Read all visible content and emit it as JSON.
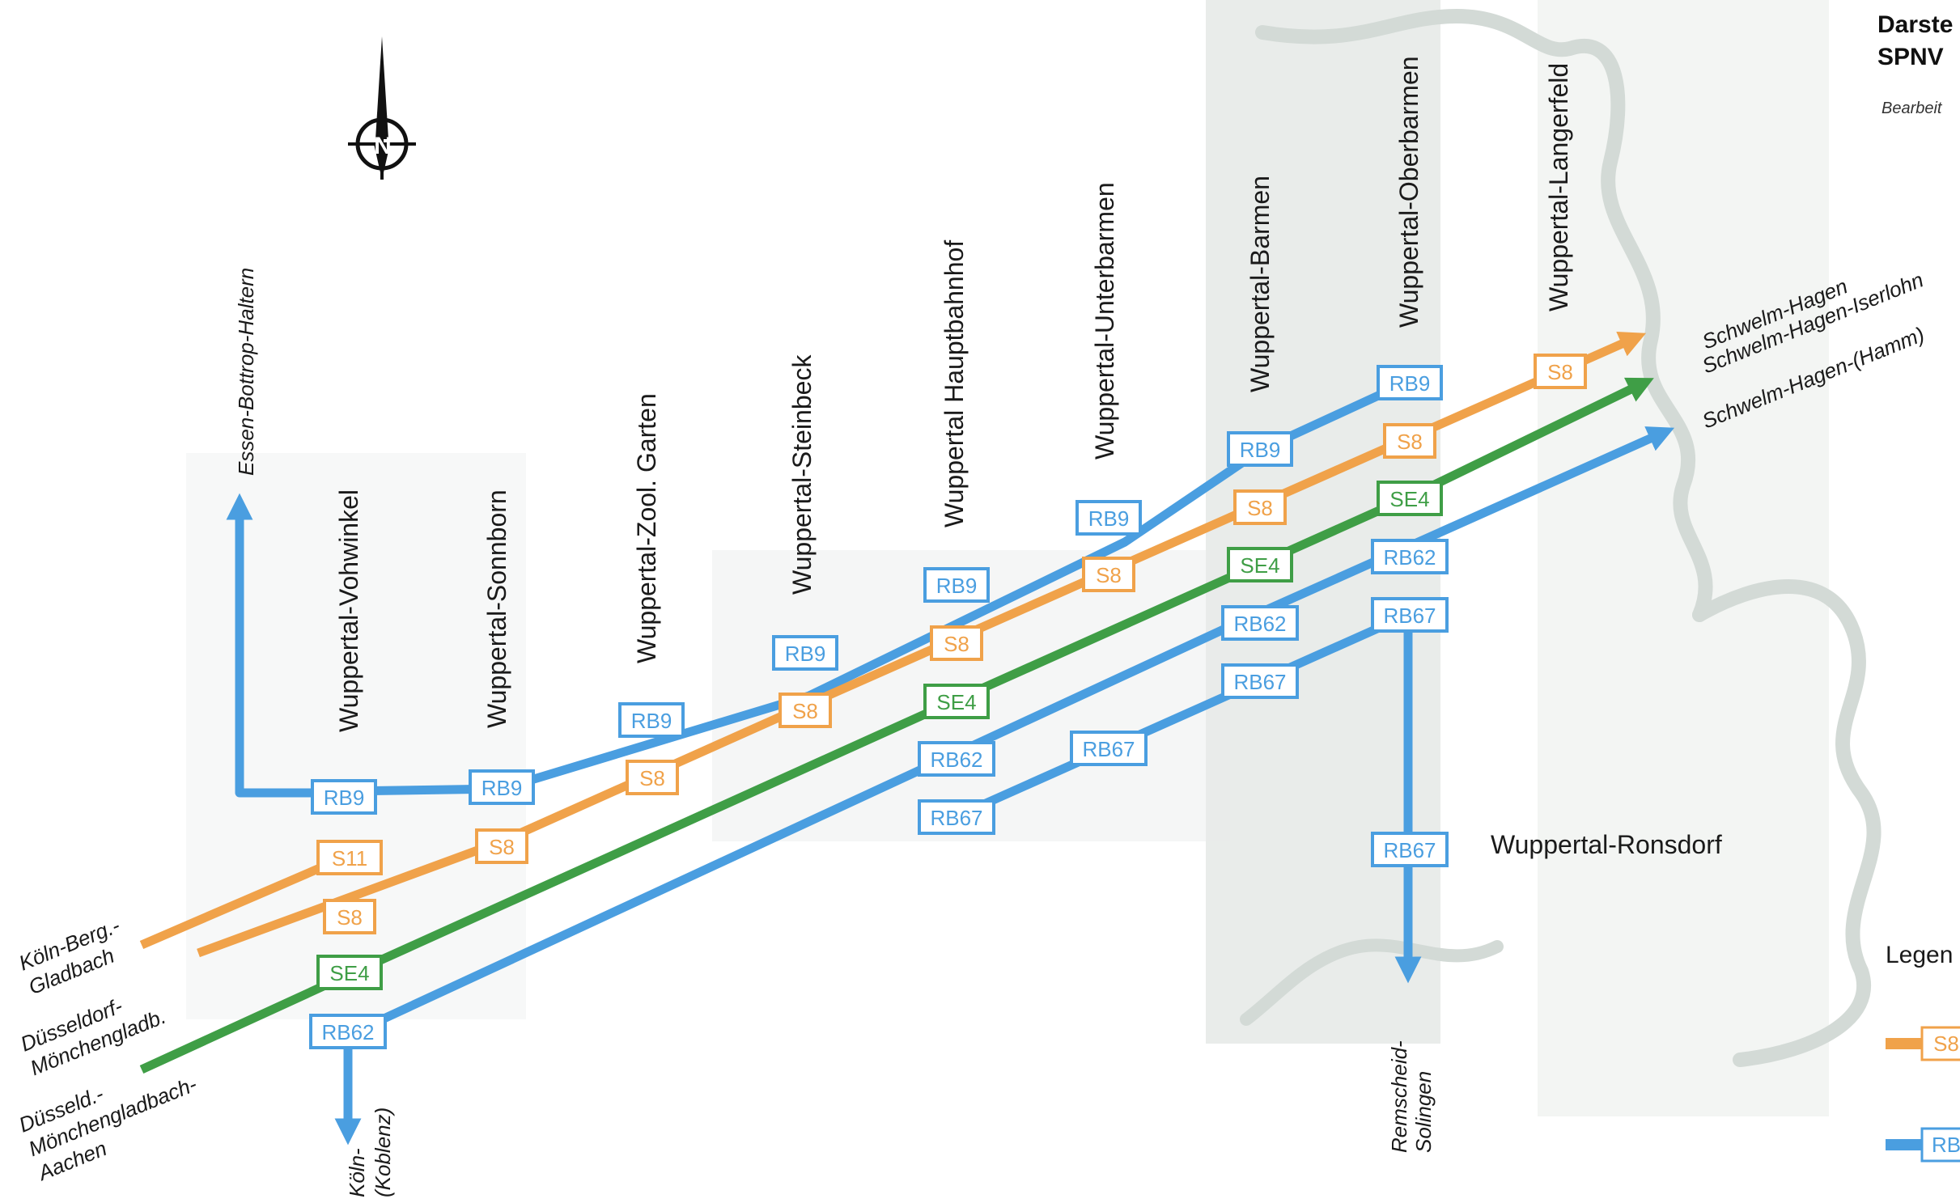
{
  "colors": {
    "rb": "#4a9ee0",
    "s": "#f0a24a",
    "se": "#3f9e46",
    "shade": "#e9ecea",
    "river": "#d3dad6"
  },
  "header": {
    "title_1": "Darste",
    "title_2": "SPNV",
    "subtitle": "Bearbeit"
  },
  "compass": {
    "letter": "N",
    "icon": "north-arrow-icon"
  },
  "stations": {
    "vohwinkel": "Wuppertal-Vohwinkel",
    "sonnborn": "Wuppertal-Sonnborn",
    "zoo": "Wuppertal-Zool. Garten",
    "steinbeck": "Wuppertal-Steinbeck",
    "hbf": "Wuppertal Hauptbahnhof",
    "unterbarmen": "Wuppertal-Unterbarmen",
    "barmen": "Wuppertal-Barmen",
    "oberbarmen": "Wuppertal-Oberbarmen",
    "langerfeld": "Wuppertal-Langerfeld",
    "ronsdorf": "Wuppertal-Ronsdorf"
  },
  "destinations": {
    "essen": "Essen-Bottrop-Haltern",
    "koeln_berg_1": "Köln-Berg.-",
    "koeln_berg_2": "Gladbach",
    "duess_mg_1": "Düsseldorf-",
    "duess_mg_2": "Mönchengladb.",
    "duess_aachen_1": "Düsseld.-",
    "duess_aachen_2": "Mönchengladbach-",
    "duess_aachen_3": "Aachen",
    "koeln_koblenz_1": "Köln-",
    "koeln_koblenz_2": "(Koblenz)",
    "remscheid_1": "Remscheid-",
    "remscheid_2": "Solingen",
    "schwelm_hagen": "Schwelm-Hagen",
    "schwelm_iserlohn": "Schwelm-Hagen-Iserlohn",
    "schwelm_hamm": "Schwelm-Hagen-(Hamm)"
  },
  "line_labels": {
    "rb9": "RB9",
    "s8": "S8",
    "s11": "S11",
    "se4": "SE4",
    "rb62": "RB62",
    "rb67": "RB67"
  },
  "legend": {
    "title": "Legen",
    "item_s": "S8",
    "item_rb": "RB"
  }
}
